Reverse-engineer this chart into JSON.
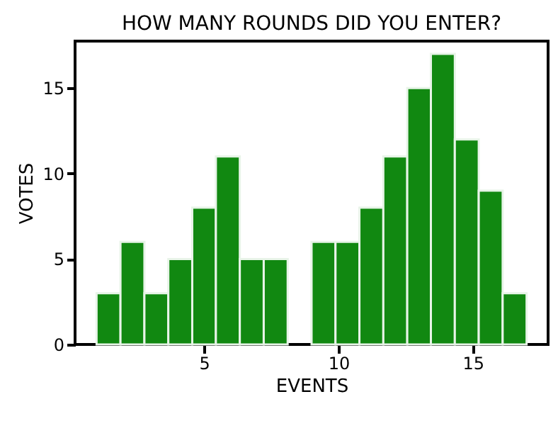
{
  "chart_data": {
    "type": "histogram",
    "title": "HOW MANY ROUNDS DID YOU ENTER?",
    "xlabel": "EVENTS",
    "ylabel": "VOTES",
    "bins": [
      1,
      1.89,
      2.78,
      3.67,
      4.56,
      5.44,
      6.33,
      7.22,
      8.11,
      9,
      9.89,
      10.78,
      11.67,
      12.56,
      13.44,
      14.33,
      15.22,
      16.11,
      17
    ],
    "values": [
      3,
      6,
      3,
      5,
      8,
      11,
      5,
      5,
      0,
      6,
      6,
      8,
      11,
      15,
      17,
      12,
      9,
      3
    ],
    "color": "#118811",
    "xlim": [
      0.2,
      17.8
    ],
    "xticks": [
      5,
      10,
      15
    ],
    "ylim": [
      0,
      17.75
    ],
    "yticks": [
      0,
      5,
      10,
      15
    ],
    "grid": false
  }
}
